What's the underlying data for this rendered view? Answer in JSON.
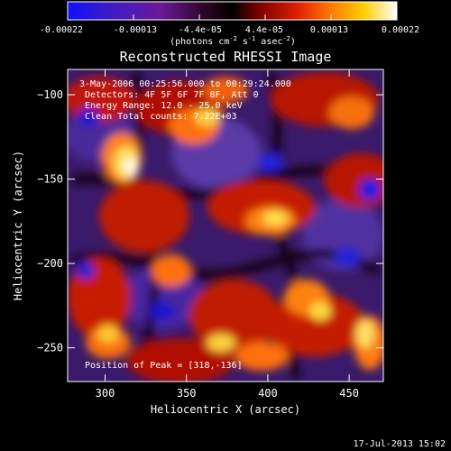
{
  "colorbar": {
    "tick_labels": [
      "-0.00022",
      "-0.00013",
      "-4.4e-05",
      "4.4e-05",
      "0.00013",
      "0.00022"
    ],
    "units_prefix": "(photons cm",
    "units_sup1": "-2",
    "units_mid": " s",
    "units_sup2": "-1",
    "units_mid2": " asec",
    "units_sup3": "-2",
    "units_suffix": ")"
  },
  "title": "Reconstructed RHESSI Image",
  "info": {
    "time_range": "3-May-2006 00:25:56.000 to 00:29:24.000",
    "detectors": "Detectors: 4F 5F 6F 7F 8F, Att 0",
    "energy_range": "Energy Range: 12.0 - 25.0 keV",
    "algorithm": "Clean     Total counts: 7.22E+03",
    "peak": "Position of Peak = [318,-136]"
  },
  "axes": {
    "xlabel": "Heliocentric X (arcsec)",
    "ylabel": "Heliocentric Y (arcsec)",
    "xlim": [
      277,
      471
    ],
    "ylim": [
      -270,
      -85
    ],
    "xticks": [
      300,
      350,
      400,
      450
    ],
    "yticks": [
      -100,
      -150,
      -200,
      -250
    ]
  },
  "footer": {
    "timestamp": "17-Jul-2013 15:02"
  },
  "colors": {
    "background": "#000000",
    "text": "#ffffff"
  }
}
